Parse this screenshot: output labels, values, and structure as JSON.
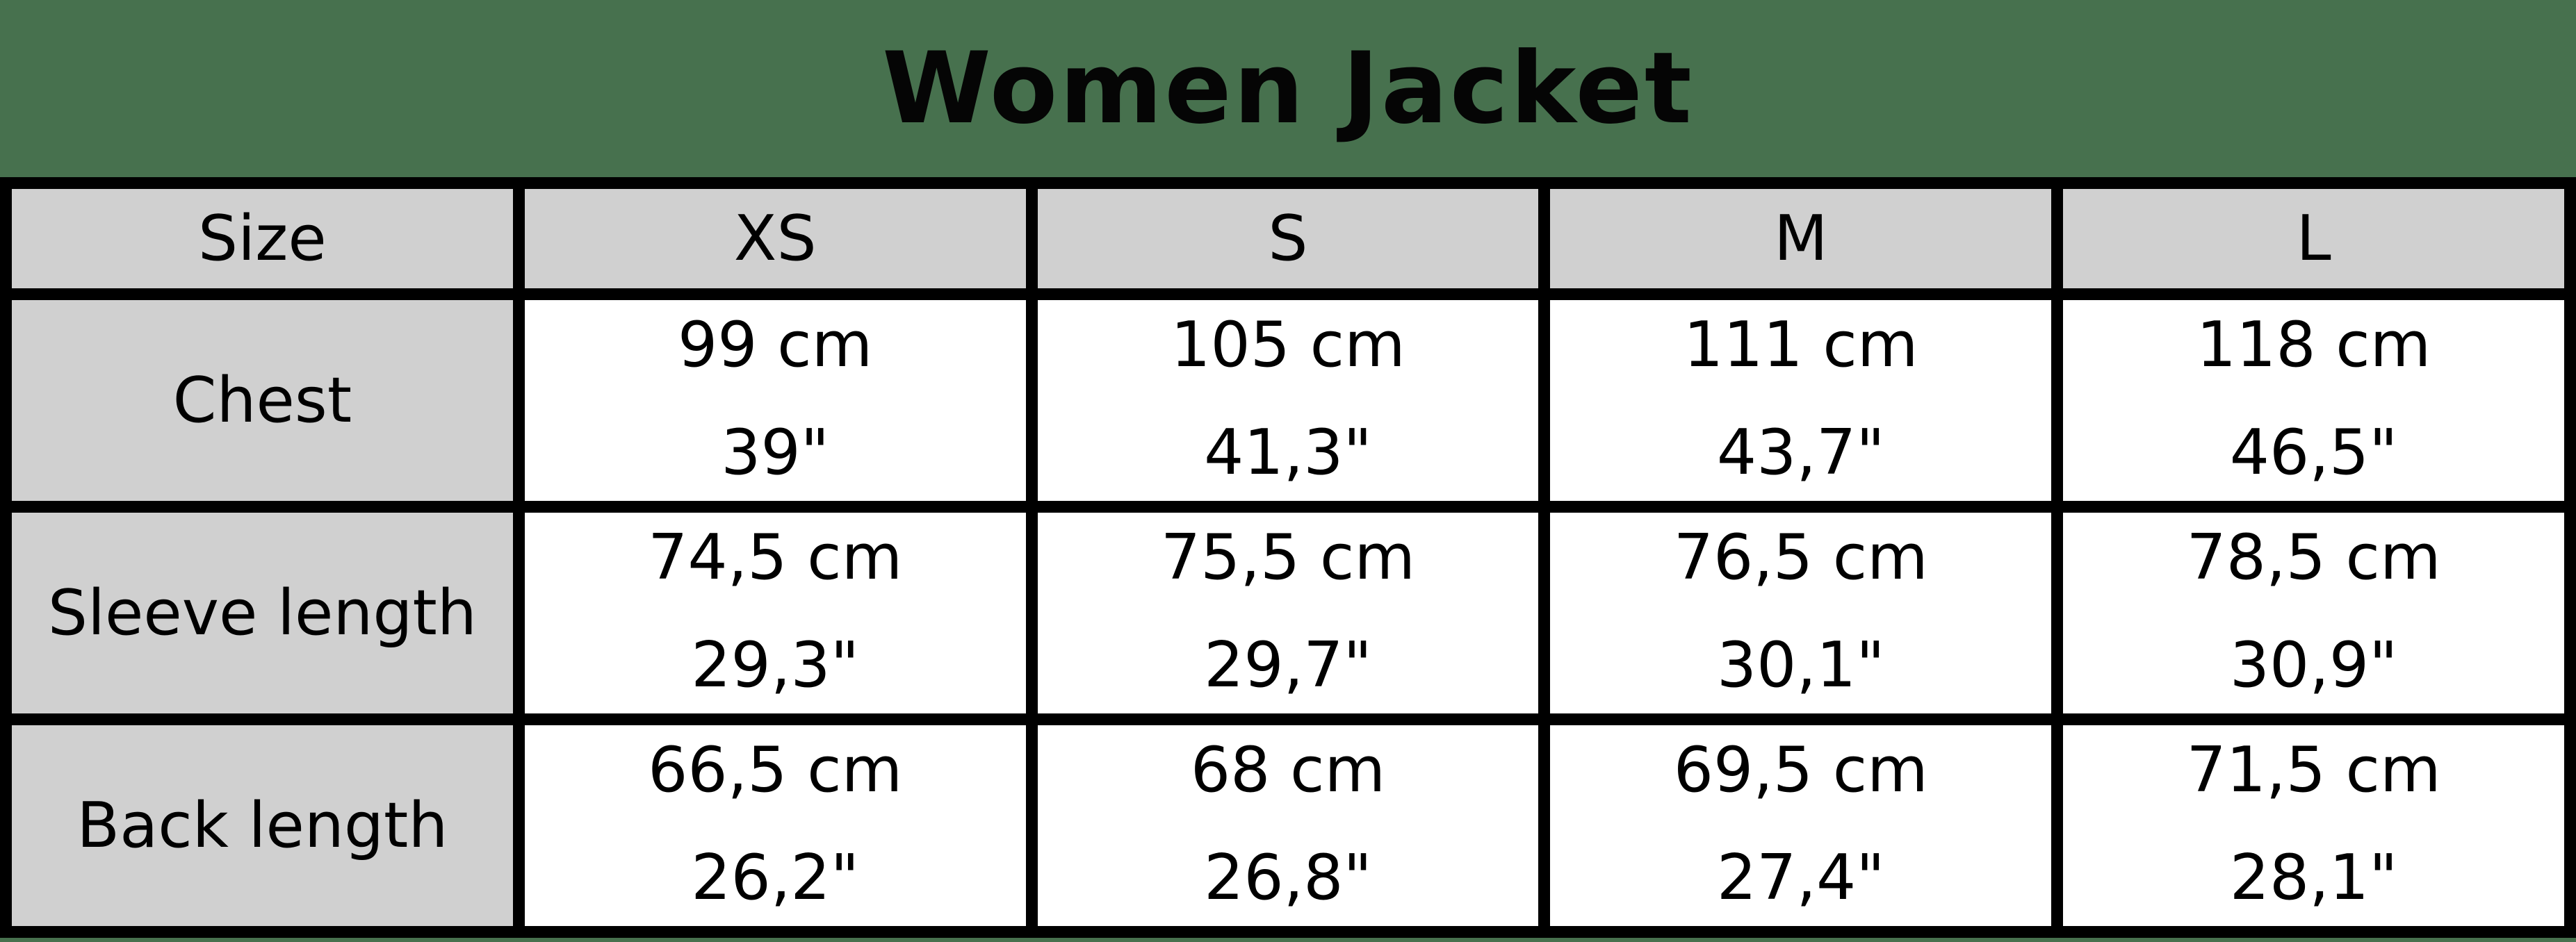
{
  "title": "Women Jacket",
  "colors": {
    "background": "#47714E",
    "header_cell": "#D0D0D0",
    "data_cell": "#FFFFFF",
    "border": "#000000",
    "text": "#000000"
  },
  "table": {
    "header": [
      "Size",
      "XS",
      "S",
      "M",
      "L"
    ],
    "rows": [
      {
        "label": "Chest",
        "cells": [
          {
            "cm": "99 cm",
            "inch": "39\""
          },
          {
            "cm": "105 cm",
            "inch": "41,3\""
          },
          {
            "cm": "111 cm",
            "inch": "43,7\""
          },
          {
            "cm": "118 cm",
            "inch": "46,5\""
          }
        ]
      },
      {
        "label": "Sleeve length",
        "cells": [
          {
            "cm": "74,5 cm",
            "inch": "29,3\""
          },
          {
            "cm": "75,5 cm",
            "inch": "29,7\""
          },
          {
            "cm": "76,5 cm",
            "inch": "30,1\""
          },
          {
            "cm": "78,5 cm",
            "inch": "30,9\""
          }
        ]
      },
      {
        "label": "Back length",
        "cells": [
          {
            "cm": "66,5 cm",
            "inch": "26,2\""
          },
          {
            "cm": "68 cm",
            "inch": "26,8\""
          },
          {
            "cm": "69,5 cm",
            "inch": "27,4\""
          },
          {
            "cm": "71,5 cm",
            "inch": "28,1\""
          }
        ]
      }
    ]
  },
  "chart_data": {
    "type": "table",
    "title": "Women Jacket",
    "columns": [
      "Size",
      "XS",
      "S",
      "M",
      "L"
    ],
    "rows": [
      [
        "Chest",
        "99 cm / 39\"",
        "105 cm / 41,3\"",
        "111 cm / 43,7\"",
        "118 cm / 46,5\""
      ],
      [
        "Sleeve length",
        "74,5 cm / 29,3\"",
        "75,5 cm / 29,7\"",
        "76,5 cm / 30,1\"",
        "78,5 cm / 30,9\""
      ],
      [
        "Back length",
        "66,5 cm / 26,2\"",
        "68 cm / 26,8\"",
        "69,5 cm / 27,4\"",
        "71,5 cm / 28,1\""
      ]
    ],
    "layout": {
      "header_row_shaded": true,
      "label_column_shaded": true,
      "units_per_cell": [
        "cm",
        "inches"
      ],
      "decimal_separator": ","
    }
  }
}
